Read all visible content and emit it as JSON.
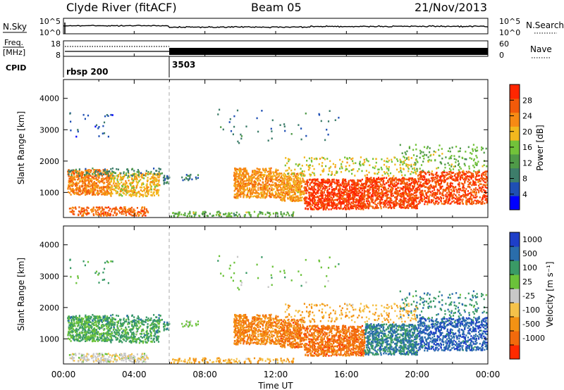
{
  "chart_data": {
    "type": "heatmap",
    "header": {
      "station": "Clyde River (fitACF)",
      "beam": "Beam 05",
      "date": "21/Nov/2013"
    },
    "top_panels": {
      "nsky_label": "N.Sky",
      "nsky_ticks": [
        "10^5",
        "10^0"
      ],
      "nsearch_label": "N.Search",
      "nsearch_ticks": [
        "10^5",
        "10^0"
      ],
      "freq_label_1": "Freq.",
      "freq_label_2": "[MHz]",
      "freq_ticks": [
        "18",
        "8"
      ],
      "nave_label": "Nave",
      "nave_ticks": [
        "60",
        "0"
      ],
      "cpid_label": "CPID",
      "cpid_segments": [
        {
          "name": "rbsp 200",
          "start_hour": 0,
          "end_hour": 6
        },
        {
          "name": "3503",
          "start_hour": 6,
          "end_hour": 24
        }
      ]
    },
    "x_axis": {
      "label": "Time UT",
      "range_hours": [
        0,
        24
      ],
      "tick_labels": [
        "00:00",
        "04:00",
        "08:00",
        "12:00",
        "16:00",
        "20:00",
        "00:00"
      ]
    },
    "y_axis": {
      "label": "Slant Range [km]",
      "range": [
        200,
        4600
      ],
      "tick_labels": [
        "1000",
        "2000",
        "3000",
        "4000"
      ]
    },
    "panels": [
      {
        "name": "power",
        "colorbar_label": "Power [dB]",
        "colorbar_range": [
          0,
          32
        ],
        "colorbar_ticks": [
          "4",
          "8",
          "12",
          "16",
          "20",
          "24",
          "28"
        ],
        "colors": [
          "#0000ff",
          "#1f4fb4",
          "#3d7d6a",
          "#4f9a48",
          "#72c23a",
          "#f2b81e",
          "#f78a14",
          "#f25a0a",
          "#ff2600"
        ]
      },
      {
        "name": "velocity",
        "colorbar_label": "Velocity [m s⁻¹]",
        "colorbar_ticks": [
          "1000",
          "500",
          "100",
          "25",
          "-25",
          "-100",
          "-500",
          "-1000"
        ],
        "colors": [
          "#1e3fc8",
          "#2a6dab",
          "#3a9a66",
          "#6bc23a",
          "#c8c8c8",
          "#f5c24a",
          "#f39214",
          "#f26a0c",
          "#ff2a00"
        ]
      }
    ]
  }
}
